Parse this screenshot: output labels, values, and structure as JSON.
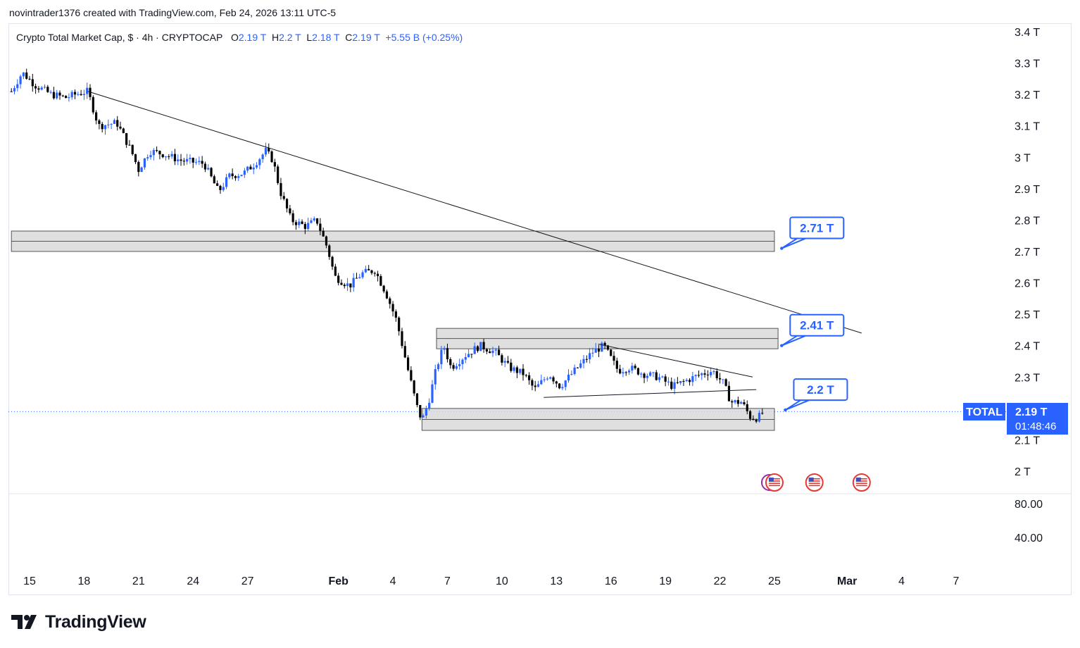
{
  "header": {
    "credit": "novintrader1376 created with TradingView.com, Feb 24, 2026 13:11 UTC-5"
  },
  "legend": {
    "symbol": "Crypto Total Market Cap, $ · 4h · CRYPTOCAP",
    "o_label": "O",
    "o_value": "2.19 T",
    "h_label": "H",
    "h_value": "2.2 T",
    "l_label": "L",
    "l_value": "2.18 T",
    "c_label": "C",
    "c_value": "2.19 T",
    "change": "+5.55 B (+0.25%)"
  },
  "price_badge": {
    "symbol": "TOTAL",
    "price": "2.19 T",
    "countdown": "01:48:46"
  },
  "callouts": [
    "2.71 T",
    "2.41 T",
    "2.2 T"
  ],
  "footer": {
    "brand": "TradingView"
  },
  "colors": {
    "up": "#2962ff",
    "down": "#000000",
    "zone_fill": "#d9d9d9",
    "accent": "#2962ff",
    "text": "#131722"
  },
  "chart_data": {
    "type": "candlestick",
    "title": "Crypto Total Market Cap, $ · 4h · CRYPTOCAP",
    "unit": "T (trillion USD)",
    "ylim": [
      1.97,
      3.43
    ],
    "y_ticks": [
      "3.4 T",
      "3.3 T",
      "3.2 T",
      "3.1 T",
      "3 T",
      "2.9 T",
      "2.8 T",
      "2.7 T",
      "2.6 T",
      "2.5 T",
      "2.4 T",
      "2.3 T",
      "2.1 T",
      "2 T"
    ],
    "y_tick_values": [
      3.4,
      3.3,
      3.2,
      3.1,
      3.0,
      2.9,
      2.8,
      2.7,
      2.6,
      2.5,
      2.4,
      2.3,
      2.1,
      2.0
    ],
    "x_ticks": [
      "15",
      "18",
      "21",
      "24",
      "27",
      "Feb",
      "4",
      "7",
      "10",
      "13",
      "16",
      "19",
      "22",
      "25",
      "Mar",
      "4",
      "7"
    ],
    "x_tick_days": [
      15,
      18,
      21,
      24,
      27,
      32,
      35,
      38,
      41,
      44,
      47,
      50,
      53,
      56,
      60,
      63,
      66
    ],
    "x_tick_bold": [
      false,
      false,
      false,
      false,
      false,
      true,
      false,
      false,
      false,
      false,
      false,
      false,
      false,
      false,
      true,
      false,
      false
    ],
    "x_unit": "day of Jan 2026 (Feb 1 = 32)",
    "xlim": [
      15.0,
      66.0
    ],
    "last_price": 2.19,
    "price_path": [
      [
        14.0,
        3.21
      ],
      [
        14.6,
        3.27
      ],
      [
        15.3,
        3.23
      ],
      [
        16.2,
        3.2
      ],
      [
        17.0,
        3.19
      ],
      [
        17.5,
        3.2
      ],
      [
        18.2,
        3.21
      ],
      [
        18.8,
        3.1
      ],
      [
        19.8,
        3.11
      ],
      [
        20.6,
        3.02
      ],
      [
        21.0,
        2.96
      ],
      [
        21.6,
        3.02
      ],
      [
        22.4,
        3.01
      ],
      [
        23.3,
        2.99
      ],
      [
        24.6,
        2.98
      ],
      [
        25.4,
        2.89
      ],
      [
        26.0,
        2.94
      ],
      [
        26.8,
        2.95
      ],
      [
        27.4,
        2.98
      ],
      [
        28.0,
        3.02
      ],
      [
        28.4,
        2.99
      ],
      [
        28.8,
        2.89
      ],
      [
        29.4,
        2.8
      ],
      [
        30.2,
        2.78
      ],
      [
        30.8,
        2.8
      ],
      [
        31.4,
        2.71
      ],
      [
        31.8,
        2.62
      ],
      [
        32.6,
        2.59
      ],
      [
        33.3,
        2.63
      ],
      [
        34.0,
        2.64
      ],
      [
        34.6,
        2.57
      ],
      [
        35.2,
        2.48
      ],
      [
        35.8,
        2.33
      ],
      [
        36.3,
        2.21
      ],
      [
        36.6,
        2.16
      ],
      [
        37.0,
        2.23
      ],
      [
        37.4,
        2.33
      ],
      [
        37.8,
        2.4
      ],
      [
        38.2,
        2.33
      ],
      [
        39.0,
        2.37
      ],
      [
        39.8,
        2.4
      ],
      [
        40.6,
        2.38
      ],
      [
        41.4,
        2.33
      ],
      [
        42.2,
        2.31
      ],
      [
        42.8,
        2.26
      ],
      [
        43.6,
        2.31
      ],
      [
        44.2,
        2.27
      ],
      [
        45.0,
        2.32
      ],
      [
        46.0,
        2.38
      ],
      [
        46.6,
        2.4
      ],
      [
        47.4,
        2.32
      ],
      [
        48.0,
        2.33
      ],
      [
        48.8,
        2.31
      ],
      [
        49.6,
        2.3
      ],
      [
        50.4,
        2.27
      ],
      [
        51.2,
        2.29
      ],
      [
        52.0,
        2.31
      ],
      [
        52.6,
        2.32
      ],
      [
        53.2,
        2.28
      ],
      [
        53.6,
        2.22
      ],
      [
        54.2,
        2.22
      ],
      [
        54.7,
        2.17
      ],
      [
        55.1,
        2.17
      ],
      [
        55.4,
        2.19
      ]
    ],
    "zones": [
      {
        "x0": 14.0,
        "x1": 56.0,
        "y0": 2.7,
        "y1": 2.765
      },
      {
        "x0": 37.4,
        "x1": 56.2,
        "y0": 2.39,
        "y1": 2.455
      },
      {
        "x0": 36.6,
        "x1": 56.0,
        "y0": 2.13,
        "y1": 2.2
      }
    ],
    "trendlines": [
      {
        "x0": 18.2,
        "y0": 3.21,
        "x1": 60.8,
        "y1": 2.44
      },
      {
        "x0": 46.3,
        "y0": 2.405,
        "x1": 54.8,
        "y1": 2.3
      },
      {
        "x0": 43.3,
        "y0": 2.235,
        "x1": 55.0,
        "y1": 2.26
      }
    ],
    "callout_anchors": [
      {
        "x": 56.4,
        "y": 2.71
      },
      {
        "x": 56.4,
        "y": 2.4
      },
      {
        "x": 56.6,
        "y": 2.195
      }
    ],
    "event_icon_days": [
      56.0,
      58.2,
      60.8
    ],
    "sub_pane": {
      "y_ticks": [
        "80.00",
        "40.00"
      ],
      "y_tick_values": [
        80,
        40
      ]
    }
  }
}
